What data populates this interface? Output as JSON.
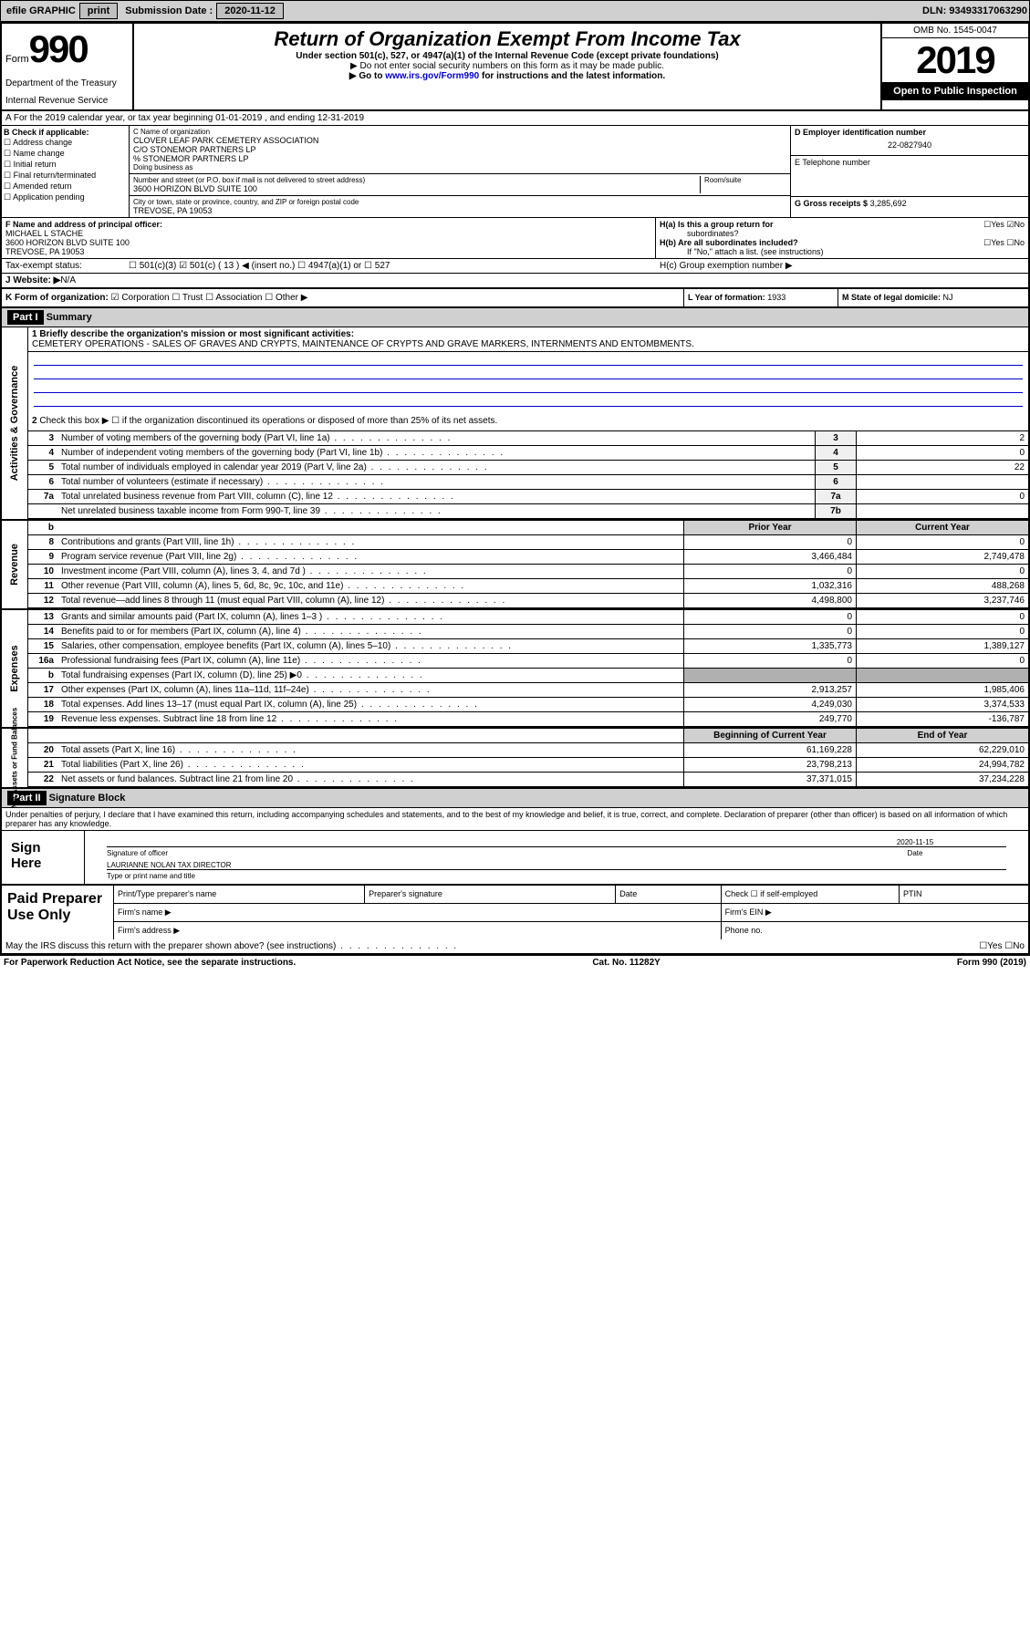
{
  "top": {
    "efile": "efile GRAPHIC",
    "print": "print",
    "subLbl": "Submission Date :",
    "subDate": "2020-11-12",
    "dln": "DLN: 93493317063290"
  },
  "header": {
    "formWord": "Form",
    "formNum": "990",
    "dept": "Department of the Treasury",
    "irs": "Internal Revenue Service",
    "title": "Return of Organization Exempt From Income Tax",
    "sub": "Under section 501(c), 527, or 4947(a)(1) of the Internal Revenue Code (except private foundations)",
    "note1": "▶ Do not enter social security numbers on this form as it may be made public.",
    "note2": "▶ Go to ",
    "link": "www.irs.gov/Form990",
    "note3": " for instructions and the latest information.",
    "omb": "OMB No. 1545-0047",
    "year": "2019",
    "open": "Open to Public Inspection"
  },
  "rowA": "A For the 2019 calendar year, or tax year beginning 01-01-2019    , and ending 12-31-2019",
  "boxB": {
    "title": "B Check if applicable:",
    "items": [
      "Address change",
      "Name change",
      "Initial return",
      "Final return/terminated",
      "Amended return",
      "Application pending"
    ]
  },
  "boxC": {
    "nameLbl": "C Name of organization",
    "name": "CLOVER LEAF PARK CEMETERY ASSOCIATION",
    "co": "C/O STONEMOR PARTNERS LP",
    "pct": "% STONEMOR PARTNERS LP",
    "dbaLbl": "Doing business as",
    "addrLbl": "Number and street (or P.O. box if mail is not delivered to street address)",
    "room": "Room/suite",
    "addr": "3600 HORIZON BLVD SUITE 100",
    "cityLbl": "City or town, state or province, country, and ZIP or foreign postal code",
    "city": "TREVOSE, PA  19053"
  },
  "boxD": {
    "lbl": "D Employer identification number",
    "ein": "22-0827940"
  },
  "boxE": {
    "lbl": "E Telephone number"
  },
  "boxG": {
    "lbl": "G Gross receipts $",
    "val": "3,285,692"
  },
  "boxF": {
    "lbl": "F  Name and address of principal officer:",
    "name": "MICHAEL L STACHE",
    "addr": "3600 HORIZON BLVD SUITE 100",
    "city": "TREVOSE, PA  19053"
  },
  "boxH": {
    "a": "H(a)  Is this a group return for",
    "a2": "subordinates?",
    "b": "H(b)  Are all subordinates included?",
    "bnote": "If \"No,\" attach a list. (see instructions)",
    "c": "H(c)  Group exemption number ▶",
    "yes": "Yes",
    "no": "No"
  },
  "taxStatus": {
    "lbl": "Tax-exempt status:",
    "a": "501(c)(3)",
    "b": "501(c) ( 13 ) ◀ (insert no.)",
    "c": "4947(a)(1) or",
    "d": "527"
  },
  "boxJ": {
    "lbl": "J   Website: ▶",
    "val": " N/A"
  },
  "boxK": {
    "lbl": "K Form of organization:",
    "a": "Corporation",
    "b": "Trust",
    "c": "Association",
    "d": "Other ▶"
  },
  "boxL": {
    "lbl": "L Year of formation:",
    "val": "1933"
  },
  "boxM": {
    "lbl": "M State of legal domicile:",
    "val": "NJ"
  },
  "part1": {
    "hdr": "Part I",
    "title": "Summary",
    "l1lbl": "1  Briefly describe the organization's mission or most significant activities:",
    "l1": "CEMETERY OPERATIONS - SALES OF GRAVES AND CRYPTS, MAINTENANCE OF CRYPTS AND GRAVE MARKERS, INTERNMENTS AND ENTOMBMENTS.",
    "l2": "Check this box ▶ ☐  if the organization discontinued its operations or disposed of more than 25% of its net assets.",
    "rows": [
      {
        "n": "3",
        "t": "Number of voting members of the governing body (Part VI, line 1a)",
        "c": "3",
        "v": "2"
      },
      {
        "n": "4",
        "t": "Number of independent voting members of the governing body (Part VI, line 1b)",
        "c": "4",
        "v": "0"
      },
      {
        "n": "5",
        "t": "Total number of individuals employed in calendar year 2019 (Part V, line 2a)",
        "c": "5",
        "v": "22"
      },
      {
        "n": "6",
        "t": "Total number of volunteers (estimate if necessary)",
        "c": "6",
        "v": ""
      },
      {
        "n": "7a",
        "t": "Total unrelated business revenue from Part VIII, column (C), line 12",
        "c": "7a",
        "v": "0"
      },
      {
        "n": "",
        "t": "Net unrelated business taxable income from Form 990-T, line 39",
        "c": "7b",
        "v": ""
      }
    ],
    "pyhdr": {
      "py": "Prior Year",
      "cy": "Current Year"
    },
    "rev": [
      {
        "n": "8",
        "t": "Contributions and grants (Part VIII, line 1h)",
        "py": "0",
        "v": "0"
      },
      {
        "n": "9",
        "t": "Program service revenue (Part VIII, line 2g)",
        "py": "3,466,484",
        "v": "2,749,478"
      },
      {
        "n": "10",
        "t": "Investment income (Part VIII, column (A), lines 3, 4, and 7d )",
        "py": "0",
        "v": "0"
      },
      {
        "n": "11",
        "t": "Other revenue (Part VIII, column (A), lines 5, 6d, 8c, 9c, 10c, and 11e)",
        "py": "1,032,316",
        "v": "488,268"
      },
      {
        "n": "12",
        "t": "Total revenue—add lines 8 through 11 (must equal Part VIII, column (A), line 12)",
        "py": "4,498,800",
        "v": "3,237,746"
      }
    ],
    "exp": [
      {
        "n": "13",
        "t": "Grants and similar amounts paid (Part IX, column (A), lines 1–3 )",
        "py": "0",
        "v": "0"
      },
      {
        "n": "14",
        "t": "Benefits paid to or for members (Part IX, column (A), line 4)",
        "py": "0",
        "v": "0"
      },
      {
        "n": "15",
        "t": "Salaries, other compensation, employee benefits (Part IX, column (A), lines 5–10)",
        "py": "1,335,773",
        "v": "1,389,127"
      },
      {
        "n": "16a",
        "t": "Professional fundraising fees (Part IX, column (A), line 11e)",
        "py": "0",
        "v": "0"
      },
      {
        "n": "b",
        "t": "Total fundraising expenses (Part IX, column (D), line 25) ▶0",
        "py": "",
        "v": "",
        "grey": true
      },
      {
        "n": "17",
        "t": "Other expenses (Part IX, column (A), lines 11a–11d, 11f–24e)",
        "py": "2,913,257",
        "v": "1,985,406"
      },
      {
        "n": "18",
        "t": "Total expenses. Add lines 13–17 (must equal Part IX, column (A), line 25)",
        "py": "4,249,030",
        "v": "3,374,533"
      },
      {
        "n": "19",
        "t": "Revenue less expenses. Subtract line 18 from line 12",
        "py": "249,770",
        "v": "-136,787"
      }
    ],
    "nahdr": {
      "py": "Beginning of Current Year",
      "cy": "End of Year"
    },
    "na": [
      {
        "n": "20",
        "t": "Total assets (Part X, line 16)",
        "py": "61,169,228",
        "v": "62,229,010"
      },
      {
        "n": "21",
        "t": "Total liabilities (Part X, line 26)",
        "py": "23,798,213",
        "v": "24,994,782"
      },
      {
        "n": "22",
        "t": "Net assets or fund balances. Subtract line 21 from line 20",
        "py": "37,371,015",
        "v": "37,234,228"
      }
    ],
    "sideA": "Activities & Governance",
    "sideR": "Revenue",
    "sideE": "Expenses",
    "sideN": "Net Assets or Fund Balances"
  },
  "part2": {
    "hdr": "Part II",
    "title": "Signature Block",
    "decl": "Under penalties of perjury, I declare that I have examined this return, including accompanying schedules and statements, and to the best of my knowledge and belief, it is true, correct, and complete. Declaration of preparer (other than officer) is based on all information of which preparer has any knowledge.",
    "signHere": "Sign Here",
    "sigOff": "Signature of officer",
    "date": "Date",
    "dateVal": "2020-11-15",
    "officer": "LAURIANNE NOLAN  TAX DIRECTOR",
    "typeLbl": "Type or print name and title",
    "paid": "Paid Preparer Use Only",
    "pName": "Print/Type preparer's name",
    "pSig": "Preparer's signature",
    "pDate": "Date",
    "pChk": "Check ☐ if self-employed",
    "ptin": "PTIN",
    "fName": "Firm's name   ▶",
    "fEin": "Firm's EIN ▶",
    "fAddr": "Firm's address ▶",
    "fPhone": "Phone no.",
    "discuss": "May the IRS discuss this return with the preparer shown above? (see instructions)"
  },
  "footer": {
    "pra": "For Paperwork Reduction Act Notice, see the separate instructions.",
    "cat": "Cat. No. 11282Y",
    "form": "Form 990 (2019)"
  }
}
